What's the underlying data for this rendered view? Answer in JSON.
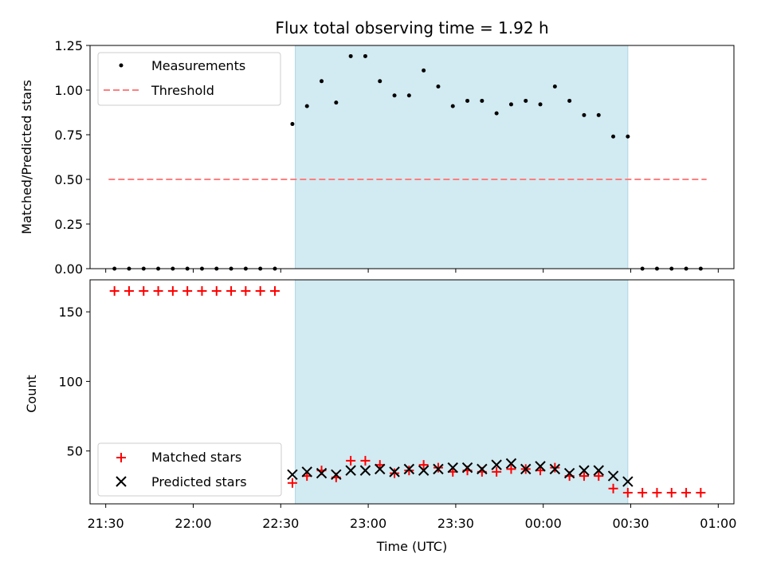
{
  "chart_data": [
    {
      "type": "scatter",
      "title": "Flux total observing time = 1.92 h",
      "xlabel": "",
      "ylabel": "Matched/Predicted stars",
      "xlim": [
        "21:30",
        "01:00"
      ],
      "ylim": [
        0,
        1.25
      ],
      "yticks": [
        "0.00",
        "0.25",
        "0.50",
        "0.75",
        "1.00",
        "1.25"
      ],
      "grid": false,
      "legend_position": "upper-left",
      "shaded_interval": [
        "22:35",
        "00:29"
      ],
      "shade_color": "#add8e6",
      "series": [
        {
          "name": "Measurements",
          "marker": "dot",
          "color": "#000000",
          "x": [
            "21:33",
            "21:38",
            "21:43",
            "21:48",
            "21:53",
            "21:58",
            "22:03",
            "22:08",
            "22:13",
            "22:18",
            "22:23",
            "22:28",
            "22:34",
            "22:39",
            "22:44",
            "22:49",
            "22:54",
            "22:59",
            "23:04",
            "23:09",
            "23:14",
            "23:19",
            "23:24",
            "23:29",
            "23:34",
            "23:39",
            "23:44",
            "23:49",
            "23:54",
            "23:59",
            "00:04",
            "00:09",
            "00:14",
            "00:19",
            "00:24",
            "00:29",
            "00:34",
            "00:39",
            "00:44",
            "00:49",
            "00:54"
          ],
          "y": [
            0,
            0,
            0,
            0,
            0,
            0,
            0,
            0,
            0,
            0,
            0,
            0,
            0.81,
            0.91,
            1.05,
            0.93,
            1.19,
            1.19,
            1.05,
            0.97,
            0.97,
            1.11,
            1.02,
            0.91,
            0.94,
            0.94,
            0.87,
            0.92,
            0.94,
            0.92,
            1.02,
            0.94,
            0.86,
            0.86,
            0.74,
            0.74,
            0,
            0,
            0,
            0,
            0
          ]
        },
        {
          "name": "Threshold",
          "line_style": "dashed",
          "color": "#ff7f7f",
          "x": [
            "21:31",
            "00:56"
          ],
          "y": [
            0.5,
            0.5
          ]
        }
      ]
    },
    {
      "type": "scatter",
      "title": "",
      "xlabel": "Time (UTC)",
      "ylabel": "Count",
      "xlim": [
        "21:30",
        "01:00"
      ],
      "ylim": [
        12,
        173
      ],
      "yticks": [
        "50",
        "100",
        "150"
      ],
      "xticks": [
        "21:30",
        "22:00",
        "22:30",
        "23:00",
        "23:30",
        "00:00",
        "00:30",
        "01:00"
      ],
      "grid": false,
      "legend_position": "lower-left",
      "shaded_interval": [
        "22:35",
        "00:29"
      ],
      "shade_color": "#add8e6",
      "series": [
        {
          "name": "Matched stars",
          "marker": "plus",
          "color": "#ff0000",
          "x": [
            "21:33",
            "21:38",
            "21:43",
            "21:48",
            "21:53",
            "21:58",
            "22:03",
            "22:08",
            "22:13",
            "22:18",
            "22:23",
            "22:28",
            "22:34",
            "22:39",
            "22:44",
            "22:49",
            "22:54",
            "22:59",
            "23:04",
            "23:09",
            "23:14",
            "23:19",
            "23:24",
            "23:29",
            "23:34",
            "23:39",
            "23:44",
            "23:49",
            "23:54",
            "23:59",
            "00:04",
            "00:09",
            "00:14",
            "00:19",
            "00:24",
            "00:29",
            "00:34",
            "00:39",
            "00:44",
            "00:49",
            "00:54"
          ],
          "y": [
            165,
            165,
            165,
            165,
            165,
            165,
            165,
            165,
            165,
            165,
            165,
            165,
            27,
            32,
            36,
            31,
            43,
            43,
            40,
            34,
            36,
            40,
            38,
            35,
            36,
            35,
            35,
            37,
            37,
            36,
            38,
            32,
            32,
            32,
            23,
            20,
            20,
            20,
            20,
            20,
            20
          ]
        },
        {
          "name": "Predicted stars",
          "marker": "x",
          "color": "#000000",
          "x": [
            "22:34",
            "22:39",
            "22:44",
            "22:49",
            "22:54",
            "22:59",
            "23:04",
            "23:09",
            "23:14",
            "23:19",
            "23:24",
            "23:29",
            "23:34",
            "23:39",
            "23:44",
            "23:49",
            "23:54",
            "23:59",
            "00:04",
            "00:09",
            "00:14",
            "00:19",
            "00:24",
            "00:29"
          ],
          "y": [
            33,
            35,
            34,
            33,
            36,
            36,
            37,
            35,
            37,
            36,
            37,
            38,
            38,
            37,
            40,
            41,
            37,
            39,
            37,
            34,
            36,
            36,
            32,
            28
          ]
        }
      ]
    }
  ]
}
